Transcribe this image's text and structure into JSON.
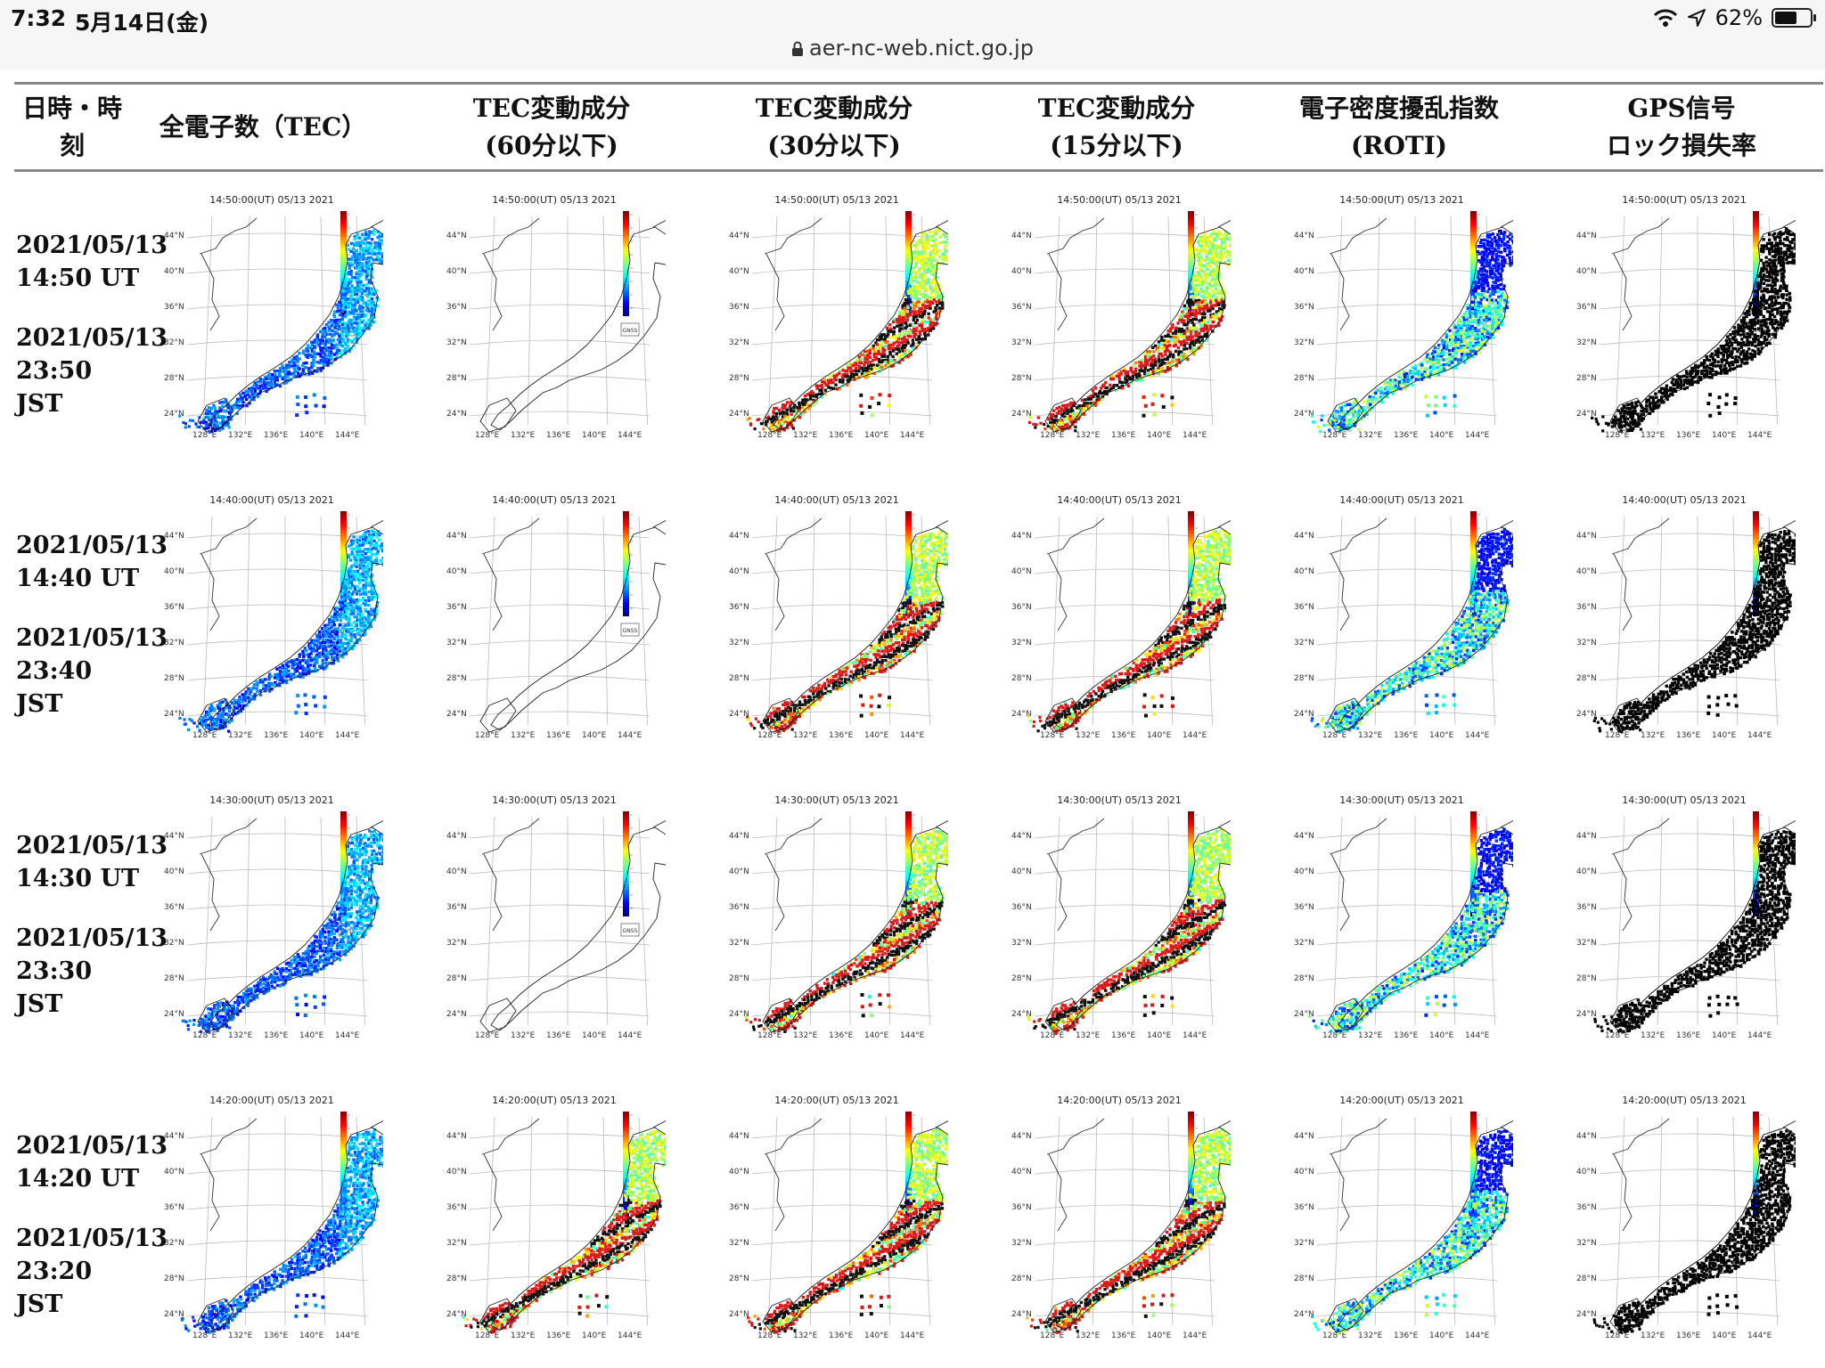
{
  "status_bar": {
    "time": "7:32",
    "date": "5月14日(金)",
    "battery": "62%",
    "battery_level": 0.62
  },
  "address_bar": {
    "url": "aer-nc-web.nict.go.jp"
  },
  "columns": [
    {
      "id": "datetime",
      "line1": "日時・時",
      "line2": "刻"
    },
    {
      "id": "tec",
      "line1": "全電子数（TEC）",
      "line2": "",
      "color_mode": "tec"
    },
    {
      "id": "dtec60",
      "line1": "TEC変動成分",
      "line2": "(60分以下)",
      "color_mode": "blank_or_mixed"
    },
    {
      "id": "dtec30",
      "line1": "TEC変動成分",
      "line2": "(30分以下)",
      "color_mode": "mixed"
    },
    {
      "id": "dtec15",
      "line1": "TEC変動成分",
      "line2": "(15分以下)",
      "color_mode": "mixed"
    },
    {
      "id": "roti",
      "line1": "電子密度擾乱指数",
      "line2": "(ROTI)",
      "color_mode": "roti"
    },
    {
      "id": "lol",
      "line1": "GPS信号",
      "line2": "ロック損失率",
      "color_mode": "black"
    }
  ],
  "map": {
    "lat_labels": [
      "44°N",
      "40°N",
      "36°N",
      "32°N",
      "28°N",
      "24°N"
    ],
    "lon_labels": [
      "128°E",
      "132°E",
      "136°E",
      "140°E",
      "144°E"
    ],
    "logo": "GNSS"
  },
  "rows": [
    {
      "ut_date": "2021/05/13",
      "ut_time": "14:50 UT",
      "jst_date": "2021/05/13",
      "jst_time": "23:50",
      "jst": "JST",
      "map_title": "14:50:00(UT) 05/13 2021",
      "dtec60_blank": true
    },
    {
      "ut_date": "2021/05/13",
      "ut_time": "14:40 UT",
      "jst_date": "2021/05/13",
      "jst_time": "23:40",
      "jst": "JST",
      "map_title": "14:40:00(UT) 05/13 2021",
      "dtec60_blank": true
    },
    {
      "ut_date": "2021/05/13",
      "ut_time": "14:30 UT",
      "jst_date": "2021/05/13",
      "jst_time": "23:30",
      "jst": "JST",
      "map_title": "14:30:00(UT) 05/13 2021",
      "dtec60_blank": true
    },
    {
      "ut_date": "2021/05/13",
      "ut_time": "14:20 UT",
      "jst_date": "2021/05/13",
      "jst_time": "23:20",
      "jst": "JST",
      "map_title": "14:20:00(UT) 05/13 2021",
      "dtec60_blank": false
    }
  ]
}
